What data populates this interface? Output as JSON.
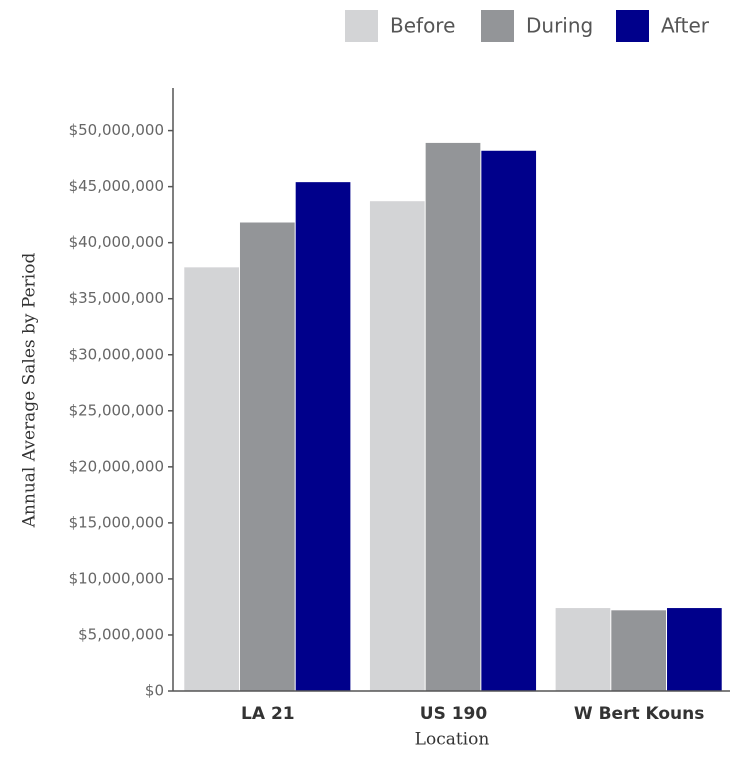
{
  "chart_data": {
    "type": "bar",
    "x_label": "Location",
    "y_label": "Annual Average Sales by Period",
    "categories": [
      "LA 21",
      "US 190",
      "W Bert Kouns"
    ],
    "series": [
      {
        "name": "Before",
        "color": "#d3d4d6",
        "values": [
          37800000,
          43700000,
          7400000
        ]
      },
      {
        "name": "During",
        "color": "#939598",
        "values": [
          41800000,
          48900000,
          7200000
        ]
      },
      {
        "name": "After",
        "color": "#00008b",
        "values": [
          45400000,
          48200000,
          7400000
        ]
      }
    ],
    "ylim": [
      0,
      53800000
    ],
    "yticks": [
      {
        "value": 0,
        "label": "$0"
      },
      {
        "value": 5000000,
        "label": "$5,000,000"
      },
      {
        "value": 10000000,
        "label": "$10,000,000"
      },
      {
        "value": 15000000,
        "label": "$15,000,000"
      },
      {
        "value": 20000000,
        "label": "$20,000,000"
      },
      {
        "value": 25000000,
        "label": "$25,000,000"
      },
      {
        "value": 30000000,
        "label": "$30,000,000"
      },
      {
        "value": 35000000,
        "label": "$35,000,000"
      },
      {
        "value": 40000000,
        "label": "$40,000,000"
      },
      {
        "value": 45000000,
        "label": "$45,000,000"
      },
      {
        "value": 50000000,
        "label": "$50,000,000"
      }
    ],
    "grid": false,
    "legend": "top-right"
  }
}
